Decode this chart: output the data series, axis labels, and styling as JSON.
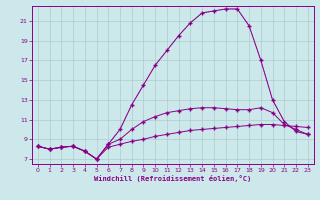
{
  "xlabel": "Windchill (Refroidissement éolien,°C)",
  "background_color": "#cce8ea",
  "grid_color": "#aacccc",
  "line_color": "#880088",
  "xlim": [
    -0.5,
    23.5
  ],
  "ylim": [
    6.5,
    22.5
  ],
  "xticks": [
    0,
    1,
    2,
    3,
    4,
    5,
    6,
    7,
    8,
    9,
    10,
    11,
    12,
    13,
    14,
    15,
    16,
    17,
    18,
    19,
    20,
    21,
    22,
    23
  ],
  "yticks": [
    7,
    9,
    11,
    13,
    15,
    17,
    19,
    21
  ],
  "line_main_x": [
    0,
    1,
    2,
    3,
    4,
    5,
    6,
    7,
    8,
    9,
    10,
    11,
    12,
    13,
    14,
    15,
    16,
    17,
    18,
    19,
    20,
    21,
    22,
    23
  ],
  "line_main_y": [
    8.3,
    8.0,
    8.2,
    8.3,
    7.8,
    7.0,
    8.5,
    10.0,
    12.5,
    14.5,
    16.5,
    18.0,
    19.5,
    20.8,
    21.8,
    22.0,
    22.2,
    22.2,
    20.5,
    17.0,
    13.0,
    10.8,
    9.8,
    9.5
  ],
  "line_mid_x": [
    0,
    1,
    2,
    3,
    4,
    5,
    6,
    7,
    8,
    9,
    10,
    11,
    12,
    13,
    14,
    15,
    16,
    17,
    18,
    19,
    20,
    21,
    22,
    23
  ],
  "line_mid_y": [
    8.3,
    8.0,
    8.2,
    8.3,
    7.8,
    7.0,
    8.5,
    9.0,
    10.0,
    10.8,
    11.3,
    11.7,
    11.9,
    12.1,
    12.2,
    12.2,
    12.1,
    12.0,
    12.0,
    12.2,
    11.7,
    10.5,
    10.0,
    9.5
  ],
  "line_low_x": [
    0,
    1,
    2,
    3,
    4,
    5,
    6,
    7,
    8,
    9,
    10,
    11,
    12,
    13,
    14,
    15,
    16,
    17,
    18,
    19,
    20,
    21,
    22,
    23
  ],
  "line_low_y": [
    8.3,
    8.0,
    8.2,
    8.3,
    7.8,
    7.0,
    8.2,
    8.5,
    8.8,
    9.0,
    9.3,
    9.5,
    9.7,
    9.9,
    10.0,
    10.1,
    10.2,
    10.3,
    10.4,
    10.5,
    10.5,
    10.4,
    10.3,
    10.2
  ],
  "line_dotted_x": [
    0,
    1,
    2,
    3,
    4,
    5,
    6,
    7,
    8,
    9,
    10,
    11,
    12,
    13,
    14,
    15,
    16,
    17,
    18,
    19,
    20,
    21,
    22,
    23
  ],
  "line_dotted_y": [
    8.3,
    8.0,
    8.2,
    8.3,
    7.8,
    7.0,
    8.5,
    10.0,
    12.5,
    14.5,
    16.5,
    18.0,
    19.5,
    20.8,
    21.8,
    22.0,
    22.2,
    22.2,
    20.5,
    17.0,
    13.0,
    10.8,
    9.8,
    9.5
  ]
}
